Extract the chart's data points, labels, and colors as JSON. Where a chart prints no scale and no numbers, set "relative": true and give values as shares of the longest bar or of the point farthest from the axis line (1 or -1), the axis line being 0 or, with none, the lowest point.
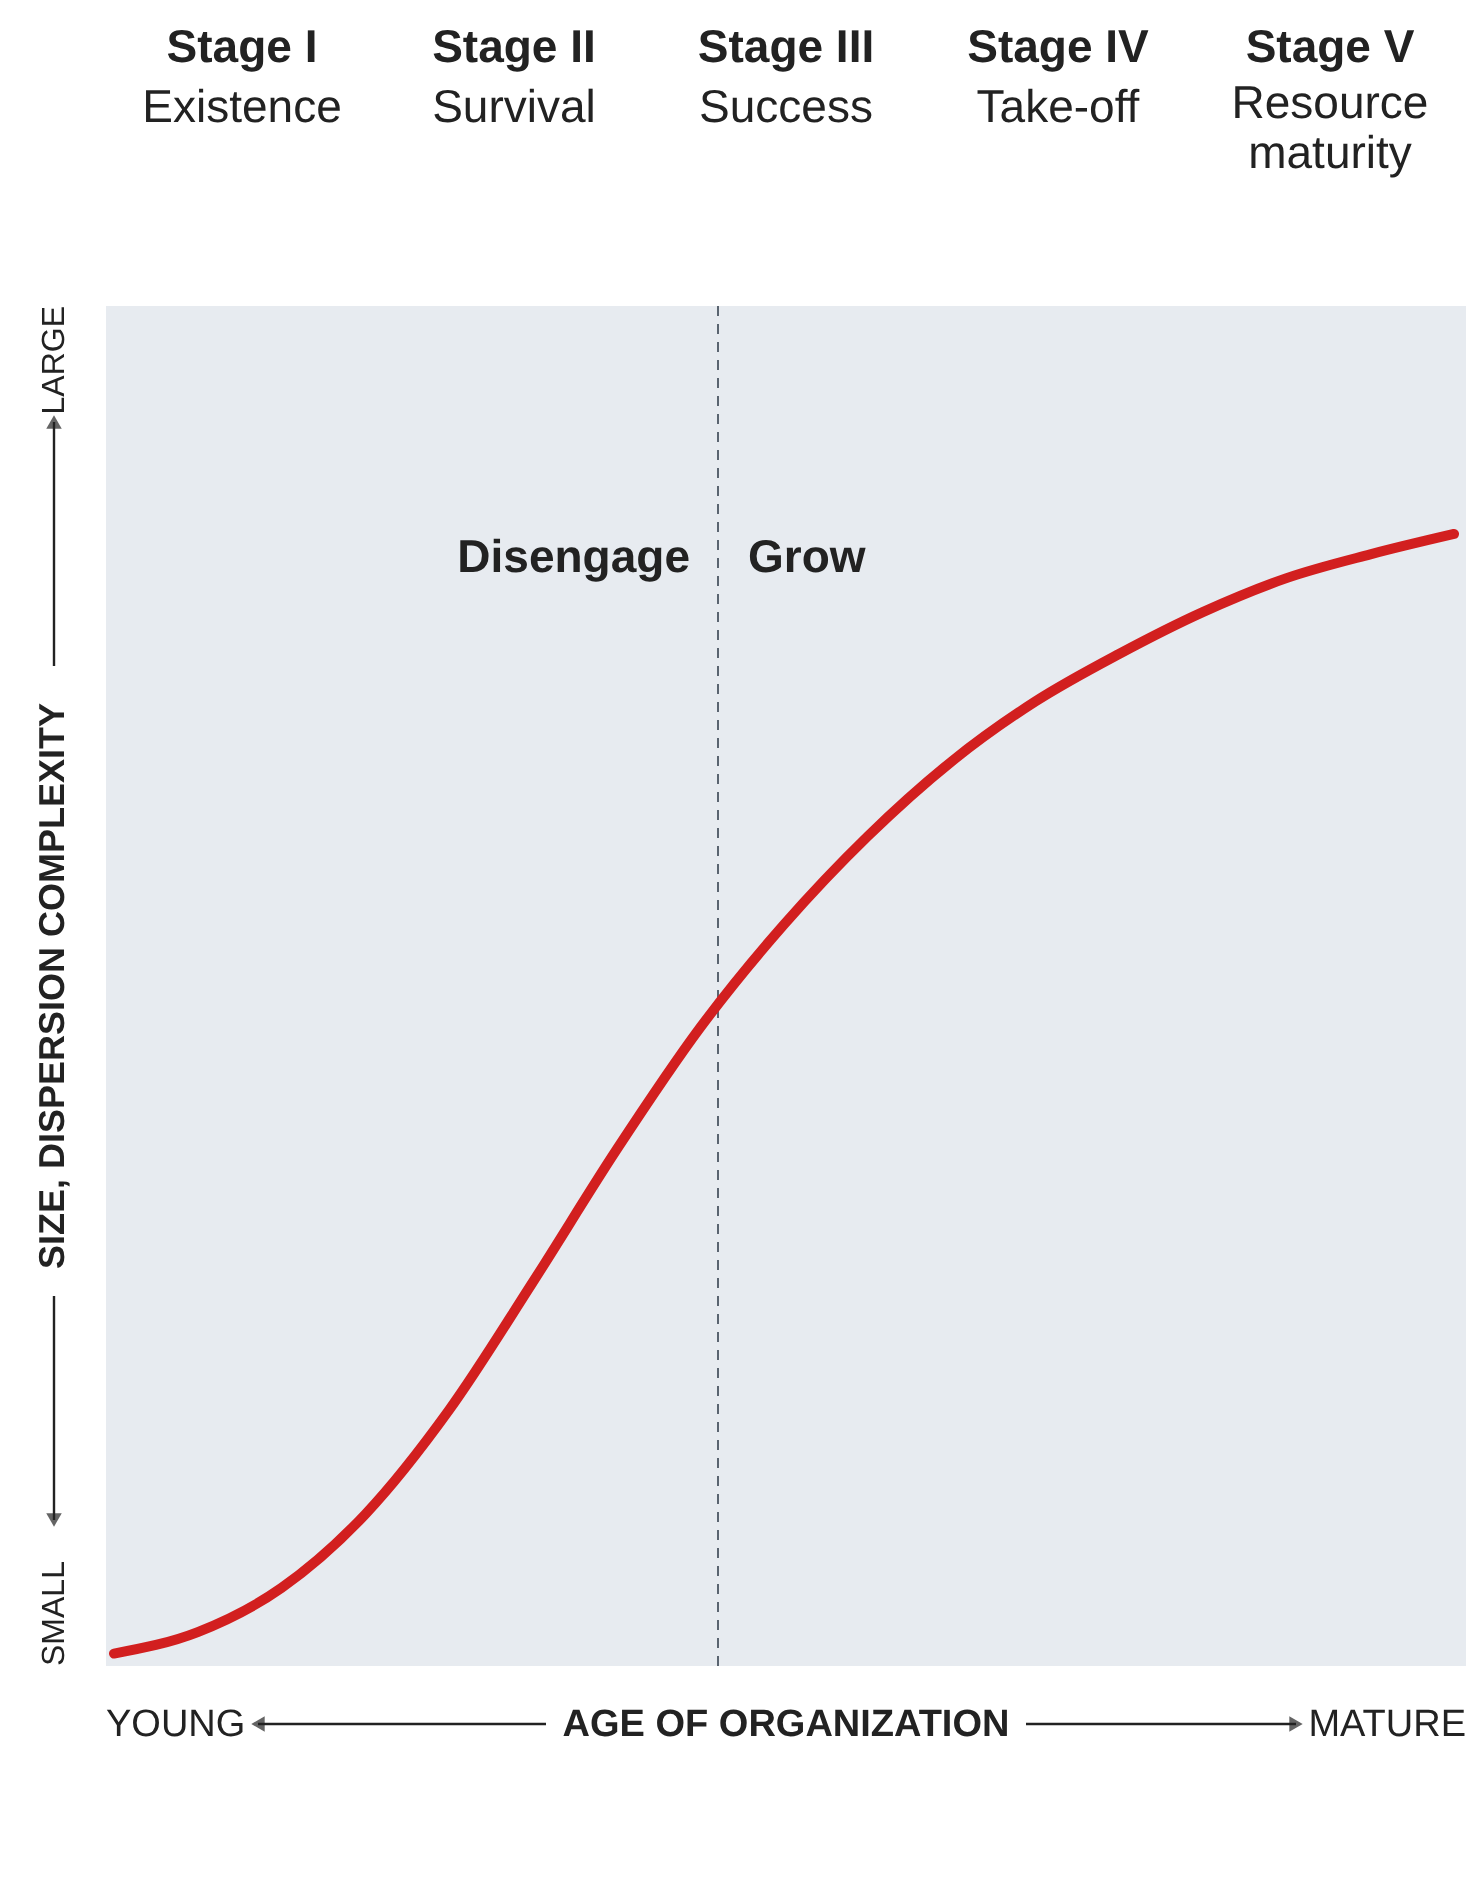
{
  "chart_data": {
    "type": "line",
    "relative": true,
    "categories": [
      null,
      null,
      null,
      null,
      null,
      null,
      null,
      null,
      null,
      null,
      null,
      null,
      null,
      null,
      null,
      null,
      null
    ],
    "series": [
      {
        "color": "#d21f1f",
        "values": [
          0.011,
          0.03,
          0.069,
          0.134,
          0.226,
          0.339,
          0.456,
          0.564,
          0.655,
          0.733,
          0.799,
          0.852,
          0.894,
          0.931,
          0.961,
          0.982,
          1
        ]
      }
    ],
    "xlabel": "AGE OF ORGANIZATION",
    "ylabel": "SIZE, DISPERSION COMPLEXITY",
    "annotations": [
      "Stage I",
      "Existence",
      "Stage II",
      "Survival",
      "Stage III",
      "Success",
      "Stage IV",
      "Take-off",
      "Stage V",
      "Resource\nmaturity",
      "Disengage",
      "Grow",
      "YOUNG",
      "MATURE",
      "SMALL",
      "LARGE"
    ]
  }
}
